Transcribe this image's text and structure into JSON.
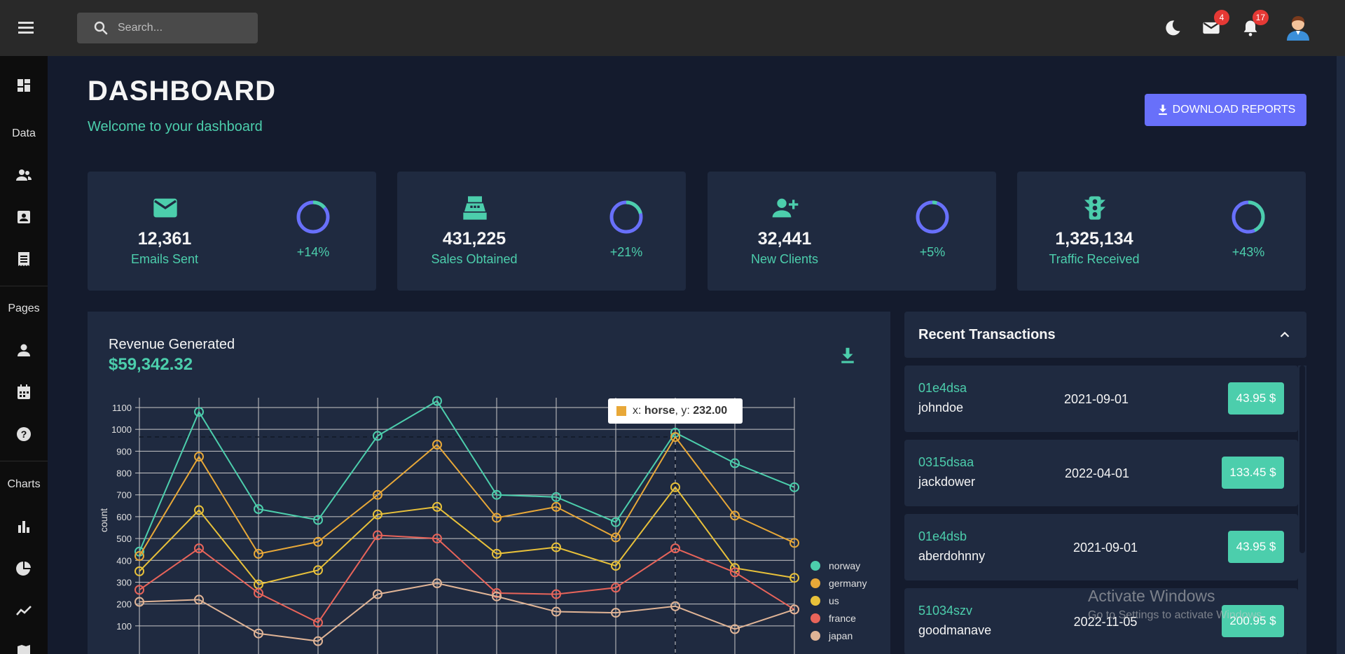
{
  "header": {
    "search_placeholder": "Search...",
    "mail_badge": "4",
    "notifications_badge": "17",
    "icons": [
      "menu-icon",
      "search-icon",
      "dark-mode-icon",
      "mail-icon",
      "notifications-icon",
      "user-avatar"
    ]
  },
  "sidebar": {
    "sections": [
      {
        "label": "Data",
        "items": [
          "team-icon",
          "contacts-icon",
          "invoices-icon"
        ]
      },
      {
        "label": "Pages",
        "items": [
          "profile-icon",
          "calendar-icon",
          "faq-icon"
        ]
      },
      {
        "label": "Charts",
        "items": [
          "bar-chart-icon",
          "pie-chart-icon",
          "line-chart-icon",
          "map-icon"
        ]
      }
    ],
    "top_item": "dashboard-icon"
  },
  "page": {
    "title": "DASHBOARD",
    "subtitle": "Welcome to your dashboard",
    "download_label": "DOWNLOAD REPORTS"
  },
  "stats": [
    {
      "value": "12,361",
      "label": "Emails Sent",
      "pct": "+14%",
      "progress": 0.14,
      "icon": "email-icon"
    },
    {
      "value": "431,225",
      "label": "Sales Obtained",
      "pct": "+21%",
      "progress": 0.21,
      "icon": "point-of-sale-icon"
    },
    {
      "value": "32,441",
      "label": "New Clients",
      "pct": "+5%",
      "progress": 0.05,
      "icon": "person-add-icon"
    },
    {
      "value": "1,325,134",
      "label": "Traffic Received",
      "pct": "+43%",
      "progress": 0.43,
      "icon": "traffic-icon"
    }
  ],
  "revenue": {
    "title": "Revenue Generated",
    "amount": "$59,342.32"
  },
  "tooltip": {
    "x_prefix": "x: ",
    "x_value": "horse",
    "y_prefix": ", y: ",
    "y_value": "232.00"
  },
  "chart_data": {
    "type": "line",
    "ylabel": "count",
    "ylim": [
      0,
      1100
    ],
    "yticks": [
      100,
      200,
      300,
      400,
      500,
      600,
      700,
      800,
      900,
      1000,
      1100
    ],
    "grid": true,
    "legend_position": "right",
    "series": [
      {
        "name": "norway",
        "color": "#4cceac",
        "values": [
          440,
          1080,
          635,
          585,
          970,
          1130,
          700,
          690,
          575,
          985,
          845,
          735
        ]
      },
      {
        "name": "germany",
        "color": "#e8a838",
        "values": [
          420,
          875,
          430,
          485,
          700,
          930,
          595,
          645,
          505,
          965,
          605,
          480
        ]
      },
      {
        "name": "us",
        "color": "#e8c13a",
        "values": [
          350,
          630,
          290,
          355,
          610,
          645,
          430,
          460,
          375,
          735,
          365,
          320
        ]
      },
      {
        "name": "france",
        "color": "#e8645a",
        "values": [
          265,
          455,
          250,
          115,
          515,
          500,
          250,
          245,
          275,
          455,
          345,
          175
        ]
      },
      {
        "name": "japan",
        "color": "#e0b496",
        "values": [
          210,
          220,
          65,
          30,
          245,
          295,
          235,
          165,
          160,
          190,
          85,
          175
        ]
      }
    ]
  },
  "transactions": {
    "title": "Recent Transactions",
    "items": [
      {
        "id": "01e4dsa",
        "user": "johndoe",
        "date": "2021-09-01",
        "amount": "43.95 $"
      },
      {
        "id": "0315dsaa",
        "user": "jackdower",
        "date": "2022-04-01",
        "amount": "133.45 $"
      },
      {
        "id": "01e4dsb",
        "user": "aberdohnny",
        "date": "2021-09-01",
        "amount": "43.95 $"
      },
      {
        "id": "51034szv",
        "user": "goodmanave",
        "date": "2022-11-05",
        "amount": "200.95 $"
      }
    ]
  },
  "watermark": {
    "line1": "Activate Windows",
    "line2": "Go to Settings to activate Windows."
  }
}
